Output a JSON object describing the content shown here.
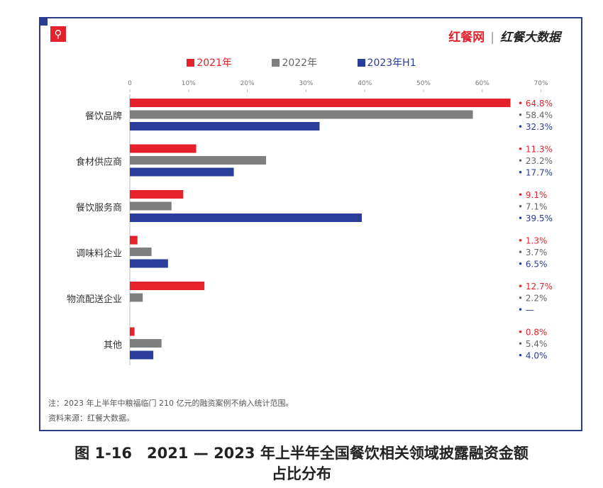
{
  "brand": {
    "logo1": "红餐网",
    "logo2": "红餐大数据"
  },
  "colors": {
    "2021年": "#e5222c",
    "2022年": "#7f7f7f",
    "2023年H1": "#2a3d9a"
  },
  "chart_data": {
    "type": "bar",
    "orientation": "horizontal",
    "categories": [
      "餐饮品牌",
      "食材供应商",
      "餐饮服务商",
      "调味料企业",
      "物流配送企业",
      "其他"
    ],
    "series": [
      {
        "name": "2021年",
        "values": [
          64.8,
          11.3,
          9.1,
          1.3,
          12.7,
          0.8
        ],
        "labels": [
          "64.8%",
          "11.3%",
          "9.1%",
          "1.3%",
          "12.7%",
          "0.8%"
        ]
      },
      {
        "name": "2022年",
        "values": [
          58.4,
          23.2,
          7.1,
          3.7,
          2.2,
          5.4
        ],
        "labels": [
          "58.4%",
          "23.2%",
          "7.1%",
          "3.7%",
          "2.2%",
          "5.4%"
        ]
      },
      {
        "name": "2023年H1",
        "values": [
          32.3,
          17.7,
          39.5,
          6.5,
          null,
          4.0
        ],
        "labels": [
          "32.3%",
          "17.7%",
          "39.5%",
          "6.5%",
          "—",
          "4.0%"
        ]
      }
    ],
    "xlim": [
      0,
      70
    ],
    "xticks": [
      "0",
      "10%",
      "20%",
      "30%",
      "40%",
      "50%",
      "60%",
      "70%"
    ],
    "legend": "top",
    "grid": false
  },
  "notes": {
    "note": "注：2023 年上半年中粮福临门 210 亿元的融资案例不纳入统计范围。",
    "source": "资料来源：红餐大数据。"
  },
  "caption": {
    "line1": "图 1-16　2021 — 2023 年上半年全国餐饮相关领域披露融资金额",
    "line2": "占比分布"
  }
}
